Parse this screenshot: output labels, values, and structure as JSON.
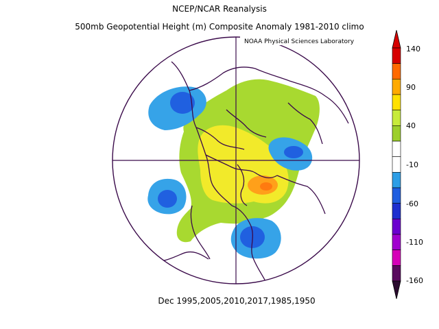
{
  "title_line1": "NCEP/NCAR Reanalysis",
  "title_line2": "500mb Geopotential Height (m) Composite Anomaly 1981-2010 climo",
  "lab_credit": "NOAA Physical Sciences Laboratory",
  "footer": "Dec 1995,2005,2010,2017,1985,1950",
  "colorbar": {
    "labels": [
      "140",
      "90",
      "40",
      "-10",
      "-60",
      "-110",
      "-160"
    ],
    "colors": [
      "#d70000",
      "#ff6a00",
      "#ffaa00",
      "#ffe100",
      "#c7eb3b",
      "#9ccf2c",
      "#ffffff",
      "#ffffff",
      "#2d9ee6",
      "#1f5ee0",
      "#1e2fcf",
      "#6b00cf",
      "#a100cf",
      "#d600b8",
      "#5a0a5e"
    ]
  },
  "anomalies": [
    {
      "name": "positive-anomaly-north-america",
      "value": 70
    },
    {
      "name": "negative-anomaly-north-pacific",
      "value": -60
    },
    {
      "name": "negative-anomaly-siberia",
      "value": -60
    },
    {
      "name": "negative-anomaly-scandinavia",
      "value": -60
    },
    {
      "name": "negative-anomaly-atlantic",
      "value": -70
    }
  ]
}
